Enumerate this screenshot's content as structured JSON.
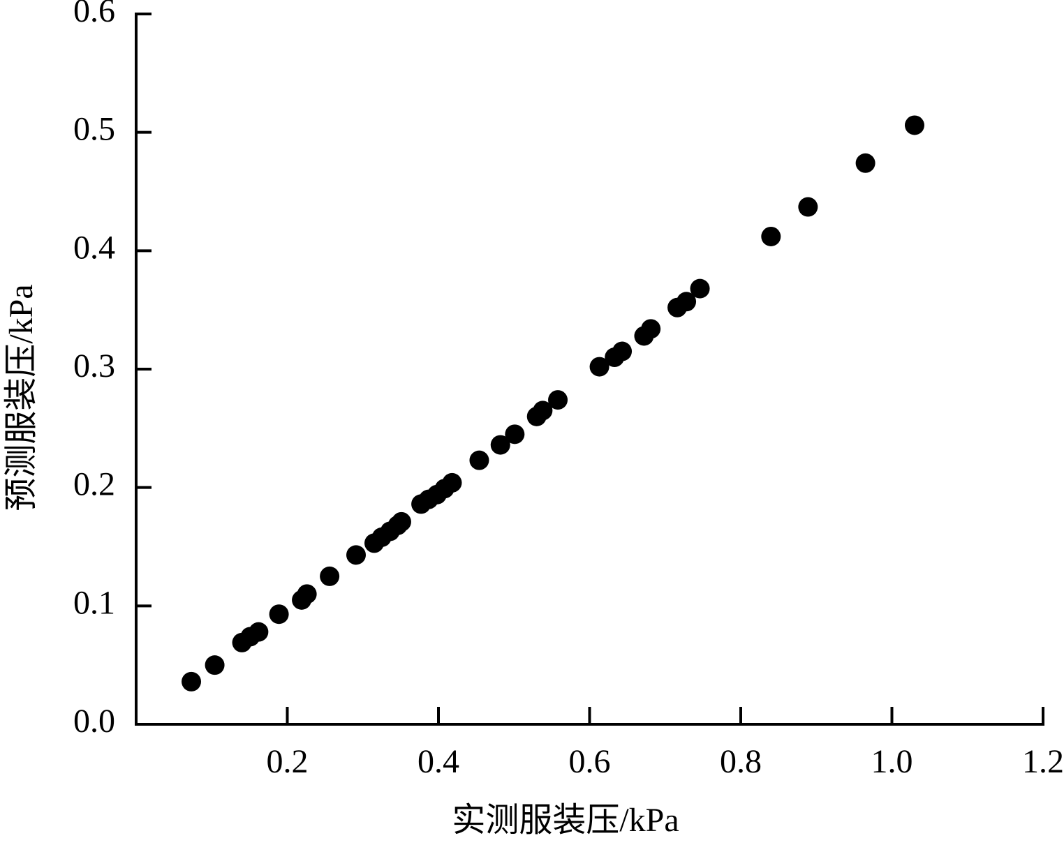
{
  "chart_data": {
    "type": "scatter",
    "x_label": "实测服装压/kPa",
    "y_label": "预测服装压/kPa",
    "x": [
      0.073,
      0.104,
      0.14,
      0.151,
      0.162,
      0.189,
      0.219,
      0.226,
      0.256,
      0.291,
      0.315,
      0.325,
      0.336,
      0.346,
      0.351,
      0.377,
      0.387,
      0.398,
      0.408,
      0.418,
      0.454,
      0.482,
      0.501,
      0.53,
      0.538,
      0.558,
      0.613,
      0.633,
      0.643,
      0.672,
      0.681,
      0.716,
      0.728,
      0.746,
      0.84,
      0.889,
      0.965,
      1.03
    ],
    "values": [
      0.036,
      0.05,
      0.069,
      0.074,
      0.078,
      0.093,
      0.105,
      0.11,
      0.125,
      0.143,
      0.153,
      0.158,
      0.163,
      0.168,
      0.171,
      0.186,
      0.19,
      0.194,
      0.199,
      0.204,
      0.223,
      0.236,
      0.245,
      0.26,
      0.265,
      0.274,
      0.302,
      0.31,
      0.315,
      0.328,
      0.334,
      0.352,
      0.357,
      0.368,
      0.412,
      0.437,
      0.474,
      0.506
    ],
    "color": "#000000",
    "xlim": [
      0,
      1.2
    ],
    "xticks": [
      0.2,
      0.4,
      0.6,
      0.8,
      {
        "value": 1,
        "label": "1.0"
      },
      1.2
    ],
    "ylim": [
      0,
      0.6
    ],
    "yticks": [
      {
        "value": 0,
        "label": "0.0"
      },
      0.1,
      0.2,
      0.3,
      0.4,
      0.5,
      0.6
    ],
    "grid": false
  }
}
